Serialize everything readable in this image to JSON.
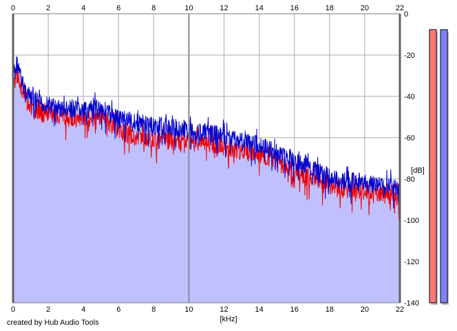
{
  "credit": "created by Hub Audio Tools",
  "chart_data": {
    "type": "area",
    "xlabel": "[kHz]",
    "ylabel": "[dB]",
    "xlim": [
      0,
      22
    ],
    "ylim": [
      -140,
      0
    ],
    "x_ticks": [
      0,
      2,
      4,
      6,
      8,
      10,
      12,
      14,
      16,
      18,
      20,
      22
    ],
    "y_ticks": [
      0,
      -20,
      -40,
      -60,
      -80,
      -100,
      -120,
      -140
    ],
    "y_tick_labels": [
      "0",
      "-20",
      "-40",
      "-60",
      "-80",
      "-100",
      "-120",
      "-140"
    ],
    "grid": true,
    "fill_color": "#c0c0ff",
    "series": [
      {
        "color": "#0000cc",
        "x": [
          0,
          0.25,
          0.5,
          1,
          1.5,
          2,
          2.5,
          3,
          3.5,
          4,
          4.5,
          5,
          5.5,
          6,
          6.5,
          7,
          7.5,
          8,
          8.5,
          9,
          9.5,
          10,
          10.5,
          11,
          11.5,
          12,
          12.5,
          13,
          13.5,
          14,
          14.5,
          15,
          15.5,
          16,
          16.5,
          17,
          17.5,
          18,
          18.5,
          19,
          19.5,
          20,
          20.5,
          21,
          21.5,
          22
        ],
        "values": [
          -28,
          -23,
          -32,
          -40,
          -42,
          -43,
          -44,
          -45,
          -45,
          -46,
          -45,
          -44,
          -47,
          -49,
          -50,
          -51,
          -52,
          -53,
          -53,
          -54,
          -54,
          -55,
          -56,
          -56,
          -57,
          -58,
          -59,
          -60,
          -61,
          -62,
          -64,
          -66,
          -68,
          -70,
          -72,
          -74,
          -76,
          -78,
          -79,
          -80,
          -80,
          -81,
          -81,
          -82,
          -82,
          -83
        ]
      },
      {
        "color": "#ee0000",
        "x": [
          0,
          0.25,
          0.5,
          1,
          1.5,
          2,
          2.5,
          3,
          3.5,
          4,
          4.5,
          5,
          5.5,
          6,
          6.5,
          7,
          7.5,
          8,
          8.5,
          9,
          9.5,
          10,
          10.5,
          11,
          11.5,
          12,
          12.5,
          13,
          13.5,
          14,
          14.5,
          15,
          15.5,
          16,
          16.5,
          17,
          17.5,
          18,
          18.5,
          19,
          19.5,
          20,
          20.5,
          21,
          21.5,
          22
        ],
        "values": [
          -32,
          -28,
          -36,
          -45,
          -47,
          -47,
          -48,
          -49,
          -50,
          -49,
          -49,
          -48,
          -52,
          -55,
          -57,
          -58,
          -59,
          -60,
          -60,
          -60,
          -60,
          -60,
          -61,
          -61,
          -62,
          -63,
          -64,
          -65,
          -66,
          -67,
          -69,
          -71,
          -73,
          -75,
          -77,
          -79,
          -80,
          -82,
          -83,
          -84,
          -84,
          -85,
          -86,
          -86,
          -87,
          -88
        ]
      }
    ],
    "level_meters": [
      {
        "channel": "left",
        "color": "#ff7878",
        "level": 1.0
      },
      {
        "channel": "right",
        "color": "#8080ff",
        "level": 1.0
      }
    ]
  }
}
